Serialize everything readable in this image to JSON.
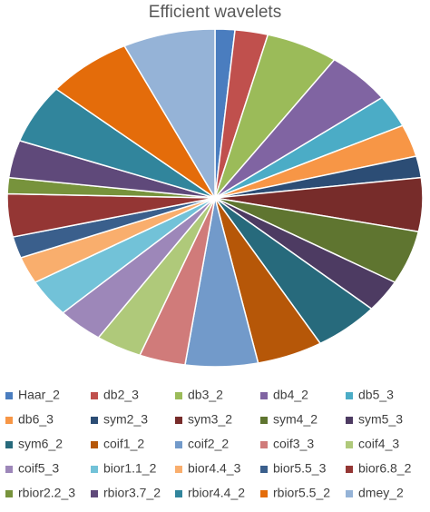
{
  "chart_data": {
    "type": "pie",
    "title": "Efficient wavelets",
    "categories": [
      "Haar_2",
      "db2_3",
      "db3_2",
      "db4_2",
      "db5_3",
      "db6_3",
      "sym2_3",
      "sym3_2",
      "sym4_2",
      "sym5_3",
      "sym6_2",
      "coif1_2",
      "coif2_2",
      "coif3_3",
      "coif4_3",
      "coif5_3",
      "bior1.1_2",
      "bior4.4_3",
      "bior5.5_3",
      "bior6.8_2",
      "rbior2.2_3",
      "rbior3.7_2",
      "rbior4.4_2",
      "rbior5.5_2",
      "dmey_2"
    ],
    "values": [
      1.5,
      2.5,
      5.5,
      5,
      3,
      3,
      2,
      5,
      5,
      3,
      5,
      5,
      5.5,
      3.5,
      3.5,
      3.5,
      3.5,
      2.5,
      2,
      4,
      1.5,
      3.5,
      5.5,
      6.5,
      7
    ],
    "colors": [
      "#4a7dbf",
      "#c0504d",
      "#9bbb59",
      "#8064a2",
      "#4bacc6",
      "#f79646",
      "#2c4d75",
      "#772c2a",
      "#5f7530",
      "#4d3b62",
      "#276a7c",
      "#b65708",
      "#729aca",
      "#d07b7a",
      "#afc97a",
      "#9d87b9",
      "#72c2d8",
      "#f9ae6d",
      "#3a5f8c",
      "#943634",
      "#77933c",
      "#5f497a",
      "#31859c",
      "#e46c0a",
      "#95b3d7"
    ]
  }
}
